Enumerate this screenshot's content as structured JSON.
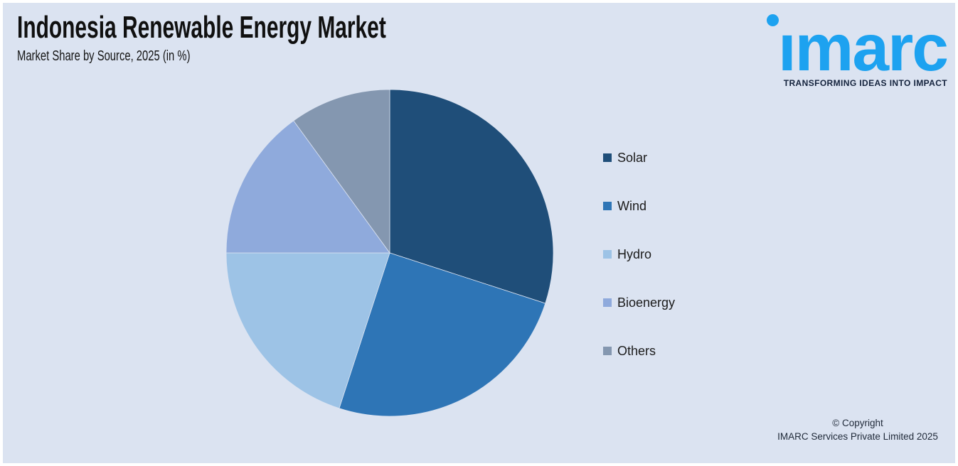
{
  "header": {
    "title": "Indonesia Renewable Energy Market",
    "subtitle": "Market Share by Source, 2025 (in %)"
  },
  "logo": {
    "wordmark": "imarc",
    "tagline": "TRANSFORMING IDEAS INTO IMPACT",
    "brand_color": "#1da2f0",
    "tagline_color": "#13223c"
  },
  "footer": {
    "copyright_line1": "© Copyright",
    "copyright_line2": "IMARC Services Private Limited 2025"
  },
  "colors": {
    "background": "#dbe3f1",
    "frame": "#ffffff",
    "title_text": "#101010"
  },
  "chart_data": {
    "type": "pie",
    "title": "Indonesia Renewable Energy Market",
    "subtitle": "Market Share by Source, 2025 (in %)",
    "categories": [
      "Solar",
      "Wind",
      "Hydro",
      "Bioenergy",
      "Others"
    ],
    "values": [
      30,
      25,
      20,
      15,
      10
    ],
    "unit": "%",
    "colors": [
      "#1f4e79",
      "#2e75b6",
      "#9dc3e6",
      "#8faadc",
      "#8497b0"
    ],
    "legend_position": "right",
    "start_angle_deg": 0,
    "direction": "clockwise",
    "data_labels": false
  }
}
